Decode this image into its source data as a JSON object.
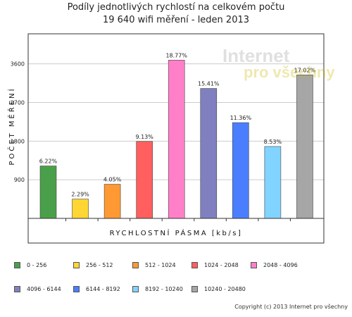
{
  "title_line1": "Podíly jednotlivých rychlostí na celkovém počtu",
  "title_line2": "19 640 wifi měření - leden 2013",
  "copyright": "Copyright (c) 2013 Internet pro všechny",
  "watermark": {
    "line1": "Internet",
    "line2": "pro všechny"
  },
  "colors": {
    "plot_border": "#333333",
    "grid": "#cccccc",
    "bar_border": "#444444"
  },
  "chart_data": {
    "type": "bar",
    "title": "Podíly jednotlivých rychlostí na celkovém počtu 19 640 wifi měření - leden 2013",
    "xlabel": "RYCHLOSTNÍ PÁSMA [kb/s]",
    "ylabel": "POČET MĚŘENÍ",
    "ylim": [
      0,
      4300
    ],
    "yticks": [
      900,
      1800,
      2700,
      3600
    ],
    "grid": true,
    "legend_position": "bottom",
    "categories": [
      "0 - 256",
      "256 - 512",
      "512 - 1024",
      "1024 - 2048",
      "2048 - 4096",
      "4096 - 6144",
      "6144 - 8192",
      "8192 - 10240",
      "10240 - 20480"
    ],
    "values": [
      1222,
      450,
      795,
      1793,
      3687,
      3027,
      2231,
      1675,
      3343
    ],
    "labels": [
      "6.22%",
      "2.29%",
      "4.05%",
      "9.13%",
      "18.77%",
      "15.41%",
      "11.36%",
      "8.53%",
      "17.02%"
    ],
    "colors": [
      "#4aa04a",
      "#ffd633",
      "#ff9933",
      "#ff5f5f",
      "#ff80c8",
      "#8080c0",
      "#4a7eff",
      "#80d4ff",
      "#a6a6a6"
    ]
  }
}
